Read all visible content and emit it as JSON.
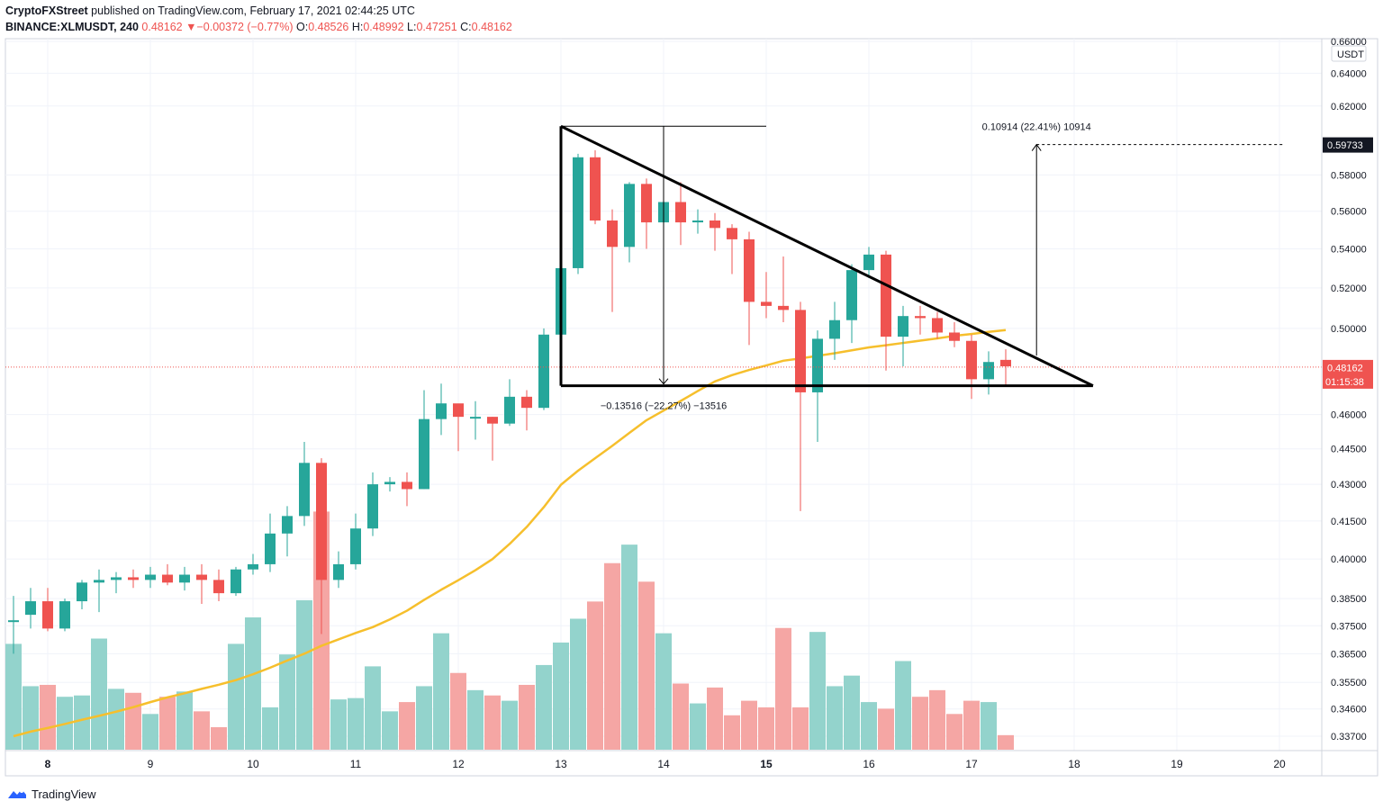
{
  "header": {
    "publisher": "CryptoFXStreet",
    "published_text": "published on TradingView.com, February 17, 2021 02:44:25 UTC",
    "symbol": "BINANCE:XLMUSDT, 240",
    "last": "0.48162",
    "change": "−0.00372 (−0.77%)",
    "o_label": "O:",
    "o_value": "0.48526",
    "h_label": "H:",
    "h_value": "0.48992",
    "l_label": "L:",
    "l_value": "0.47251",
    "c_label": "C:",
    "c_value": "0.48162"
  },
  "footer": {
    "brand": "TradingView",
    "icon": "tradingview-logo-icon"
  },
  "colors": {
    "up": "#26a69a",
    "down": "#ef5350",
    "vol_up": "#93d3cc",
    "vol_down": "#f5a6a4",
    "ma": "#f6bf2c",
    "lines": "#000000",
    "grid": "#f0f3fa"
  },
  "chart_data": {
    "type": "candlestick",
    "symbol": "BINANCE:XLMUSDT",
    "interval": "240",
    "currency": "USDT",
    "y_scale": "log",
    "ylim": [
      0.3335,
      0.66
    ],
    "y_ticks": [
      "0.66000",
      "0.64000",
      "0.62000",
      "0.58000",
      "0.56000",
      "0.54000",
      "0.52000",
      "0.50000",
      "0.46000",
      "0.44500",
      "0.43000",
      "0.41500",
      "0.40000",
      "0.38500",
      "0.37500",
      "0.36500",
      "0.35500",
      "0.34600",
      "0.33700"
    ],
    "x_labels": [
      {
        "label": "8",
        "bar": 2,
        "bold": true
      },
      {
        "label": "9",
        "bar": 8
      },
      {
        "label": "10",
        "bar": 14
      },
      {
        "label": "11",
        "bar": 20
      },
      {
        "label": "12",
        "bar": 26
      },
      {
        "label": "13",
        "bar": 32
      },
      {
        "label": "14",
        "bar": 38
      },
      {
        "label": "15",
        "bar": 44,
        "bold": true
      },
      {
        "label": "16",
        "bar": 50
      },
      {
        "label": "17",
        "bar": 56
      },
      {
        "label": "18",
        "bar": 62
      },
      {
        "label": "19",
        "bar": 68
      },
      {
        "label": "20",
        "bar": 74
      }
    ],
    "candles": [
      [
        0.377,
        0.377,
        0.386,
        0.365
      ],
      [
        0.379,
        0.384,
        0.389,
        0.374
      ],
      [
        0.384,
        0.374,
        0.389,
        0.373
      ],
      [
        0.374,
        0.384,
        0.385,
        0.373
      ],
      [
        0.384,
        0.391,
        0.392,
        0.381
      ],
      [
        0.391,
        0.392,
        0.396,
        0.38
      ],
      [
        0.392,
        0.393,
        0.395,
        0.387
      ],
      [
        0.393,
        0.392,
        0.396,
        0.389
      ],
      [
        0.392,
        0.394,
        0.397,
        0.389
      ],
      [
        0.394,
        0.391,
        0.398,
        0.39
      ],
      [
        0.391,
        0.394,
        0.397,
        0.388
      ],
      [
        0.394,
        0.392,
        0.398,
        0.383
      ],
      [
        0.392,
        0.387,
        0.396,
        0.384
      ],
      [
        0.387,
        0.396,
        0.397,
        0.386
      ],
      [
        0.396,
        0.398,
        0.402,
        0.394
      ],
      [
        0.398,
        0.41,
        0.418,
        0.395
      ],
      [
        0.41,
        0.417,
        0.421,
        0.401
      ],
      [
        0.417,
        0.439,
        0.448,
        0.413
      ],
      [
        0.439,
        0.392,
        0.441,
        0.372
      ],
      [
        0.392,
        0.398,
        0.403,
        0.389
      ],
      [
        0.398,
        0.412,
        0.418,
        0.396
      ],
      [
        0.412,
        0.43,
        0.435,
        0.409
      ],
      [
        0.43,
        0.431,
        0.433,
        0.427
      ],
      [
        0.431,
        0.428,
        0.435,
        0.421
      ],
      [
        0.428,
        0.458,
        0.471,
        0.428
      ],
      [
        0.458,
        0.465,
        0.474,
        0.451
      ],
      [
        0.465,
        0.459,
        0.464,
        0.444
      ],
      [
        0.459,
        0.459,
        0.466,
        0.449
      ],
      [
        0.459,
        0.456,
        0.459,
        0.44
      ],
      [
        0.456,
        0.468,
        0.476,
        0.455
      ],
      [
        0.468,
        0.463,
        0.471,
        0.453
      ],
      [
        0.463,
        0.497,
        0.5,
        0.462
      ],
      [
        0.497,
        0.53,
        0.536,
        0.494
      ],
      [
        0.53,
        0.59,
        0.592,
        0.527
      ],
      [
        0.59,
        0.555,
        0.594,
        0.553
      ],
      [
        0.555,
        0.541,
        0.561,
        0.508
      ],
      [
        0.541,
        0.575,
        0.576,
        0.533
      ],
      [
        0.575,
        0.554,
        0.578,
        0.54
      ],
      [
        0.554,
        0.565,
        0.58,
        0.541
      ],
      [
        0.565,
        0.554,
        0.576,
        0.542
      ],
      [
        0.554,
        0.555,
        0.561,
        0.548
      ],
      [
        0.555,
        0.551,
        0.559,
        0.539
      ],
      [
        0.551,
        0.545,
        0.553,
        0.527
      ],
      [
        0.545,
        0.513,
        0.549,
        0.492
      ],
      [
        0.513,
        0.511,
        0.528,
        0.505
      ],
      [
        0.511,
        0.509,
        0.536,
        0.503
      ],
      [
        0.509,
        0.47,
        0.513,
        0.419
      ],
      [
        0.47,
        0.495,
        0.499,
        0.448
      ],
      [
        0.495,
        0.504,
        0.513,
        0.485
      ],
      [
        0.504,
        0.529,
        0.532,
        0.493
      ],
      [
        0.529,
        0.537,
        0.541,
        0.525
      ],
      [
        0.537,
        0.496,
        0.539,
        0.48
      ],
      [
        0.496,
        0.506,
        0.511,
        0.482
      ],
      [
        0.506,
        0.505,
        0.511,
        0.497
      ],
      [
        0.505,
        0.498,
        0.508,
        0.495
      ],
      [
        0.498,
        0.494,
        0.503,
        0.491
      ],
      [
        0.494,
        0.476,
        0.497,
        0.467
      ],
      [
        0.476,
        0.484,
        0.489,
        0.469
      ],
      [
        0.485,
        0.482,
        0.49,
        0.473
      ]
    ],
    "volume": [
      0.8,
      0.48,
      0.49,
      0.4,
      0.41,
      0.84,
      0.46,
      0.43,
      0.27,
      0.4,
      0.44,
      0.29,
      0.17,
      0.8,
      1.0,
      0.32,
      0.72,
      1.13,
      1.8,
      0.38,
      0.39,
      0.63,
      0.29,
      0.36,
      0.48,
      0.88,
      0.58,
      0.45,
      0.41,
      0.37,
      0.49,
      0.64,
      0.81,
      0.99,
      1.12,
      1.41,
      1.55,
      1.27,
      0.88,
      0.5,
      0.35,
      0.47,
      0.26,
      0.37,
      0.32,
      0.92,
      0.32,
      0.89,
      0.48,
      0.56,
      0.36,
      0.31,
      0.67,
      0.4,
      0.45,
      0.27,
      0.37,
      0.36,
      0.11
    ],
    "ma": [
      0.337,
      0.3385,
      0.3397,
      0.341,
      0.3424,
      0.3437,
      0.3451,
      0.3466,
      0.3483,
      0.3499,
      0.3513,
      0.3528,
      0.3542,
      0.3558,
      0.3578,
      0.3601,
      0.3626,
      0.365,
      0.3678,
      0.3701,
      0.3724,
      0.3745,
      0.3773,
      0.3805,
      0.3845,
      0.3883,
      0.3919,
      0.3957,
      0.4,
      0.4059,
      0.4126,
      0.4206,
      0.4298,
      0.4357,
      0.441,
      0.4463,
      0.4519,
      0.4575,
      0.4618,
      0.4661,
      0.4706,
      0.475,
      0.4779,
      0.4803,
      0.4824,
      0.4846,
      0.4857,
      0.4869,
      0.4881,
      0.4895,
      0.4909,
      0.4919,
      0.493,
      0.4941,
      0.4952,
      0.4964,
      0.4973,
      0.4983,
      0.4992
    ],
    "pattern": {
      "name": "descending triangle",
      "apex": {
        "bar": 32,
        "price": 0.608
      },
      "base_left": {
        "bar": 32,
        "price": 0.473
      },
      "base_right": {
        "bar": 63.1,
        "price": 0.473
      },
      "measure_top": {
        "bar": 44,
        "price": 0.608
      },
      "measure_arrow_bar": 38,
      "target_arrow_bar": 59.8,
      "target_arrow_from": 0.487,
      "target_price": 0.59733,
      "target_line_to_bar": 74.2
    },
    "annotations": {
      "drop": "−0.13516 (−22.27%) −13516",
      "target": "0.10914 (22.41%) 10914"
    },
    "price_labels": {
      "current": "0.48162",
      "timer": "01:15:38",
      "target": "0.59733",
      "unit": "USDT"
    }
  }
}
